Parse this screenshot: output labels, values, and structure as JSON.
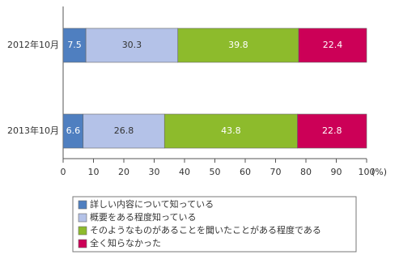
{
  "chart_data": {
    "type": "stacked-barh",
    "categories": [
      "2012年10月",
      "2013年10月"
    ],
    "series": [
      {
        "name": "詳しい内容について知っている",
        "color": "#4f7fc0",
        "label_color": "#ffffff",
        "values": [
          7.5,
          6.6
        ]
      },
      {
        "name": "概要をある程度知っている",
        "color": "#b4c2e8",
        "label_color": "#333333",
        "values": [
          30.3,
          26.8
        ]
      },
      {
        "name": "そのようなものがあることを聞いたことがある程度である",
        "color": "#8dbb2c",
        "label_color": "#ffffff",
        "values": [
          39.8,
          43.8
        ]
      },
      {
        "name": "全く知らなかった",
        "color": "#cc0057",
        "label_color": "#ffffff",
        "values": [
          22.4,
          22.8
        ]
      }
    ],
    "xlim": [
      0,
      100
    ],
    "xticks": [
      0,
      10,
      20,
      30,
      40,
      50,
      60,
      70,
      80,
      90,
      100
    ],
    "x_label": "(%)"
  }
}
